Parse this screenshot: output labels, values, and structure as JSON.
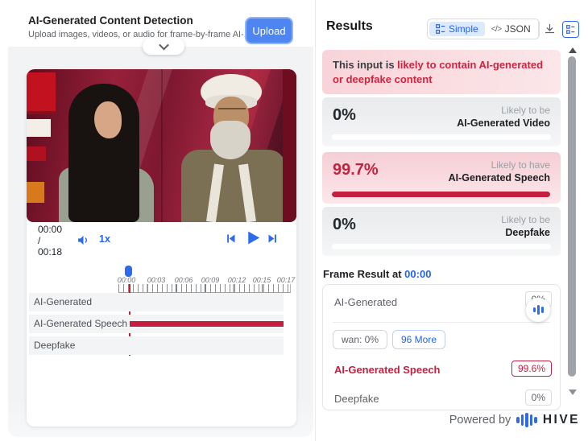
{
  "left_panel": {
    "header": {
      "title": "AI-Generated Content Detection",
      "subtitle": "Upload images, videos, or audio for frame-by-frame AI-...",
      "upload_label": "Upload"
    },
    "player": {
      "current_time": "00:00",
      "time_separator": "/",
      "duration": "00:18",
      "playback_speed": "1x",
      "timeline_labels": [
        "00:00",
        "00:03",
        "00:06",
        "00:09",
        "00:12",
        "00:15",
        "00:17"
      ],
      "tracks": [
        {
          "label": "AI-Generated"
        },
        {
          "label": "AI-Generated Speech"
        },
        {
          "label": "Deepfake"
        }
      ]
    }
  },
  "results": {
    "title": "Results",
    "toggle": {
      "simple_label": "Simple",
      "json_icon": "</>",
      "json_label": "JSON"
    },
    "alert_prefix": "This input is ",
    "alert_highlight": "likely to contain AI-generated or deepfake content",
    "score_cards": [
      {
        "percent": "0%",
        "qualifier": "Likely to be",
        "label": "AI-Generated Video",
        "value": 0
      },
      {
        "percent": "99.7%",
        "qualifier": "Likely to have",
        "label": "AI-Generated Speech",
        "value": 99.7
      },
      {
        "percent": "0%",
        "qualifier": "Likely to be",
        "label": "Deepfake",
        "value": 0
      }
    ],
    "frame_result": {
      "heading": "Frame Result at",
      "timestamp": "00:00",
      "ai_generated_label": "AI-Generated",
      "ai_generated_score": "0%",
      "chip_first": "wan: 0%",
      "chip_more": "96 More",
      "speech_label": "AI-Generated Speech",
      "speech_score": "99.6%",
      "deepfake_label": "Deepfake",
      "deepfake_score": "0%"
    },
    "footer": {
      "powered_by": "Powered by",
      "brand": "HIVE"
    }
  },
  "colors": {
    "accent_blue": "#2f6ae8",
    "danger_red": "#c41f3e",
    "alert_pink": "#f8d4d9"
  }
}
